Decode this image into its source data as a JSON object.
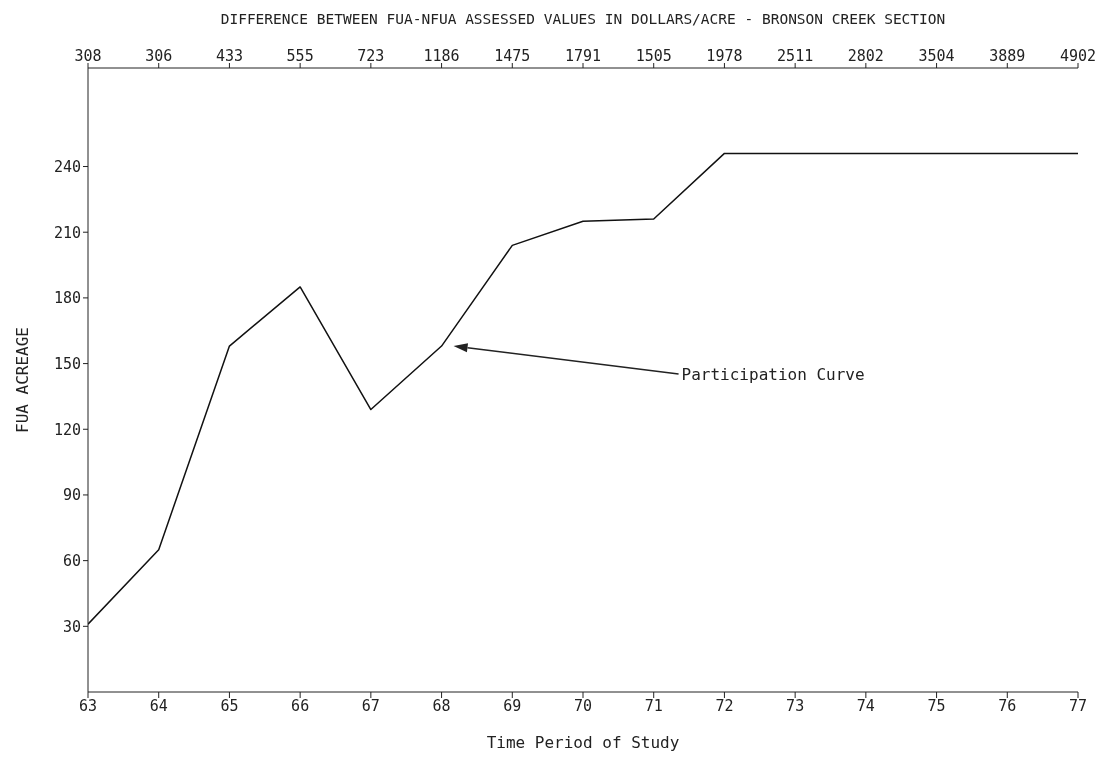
{
  "chart_data": {
    "type": "line",
    "xlabel": "Time Period of Study",
    "ylabel": "FUA  ACREAGE",
    "x2label": "DIFFERENCE BETWEEN FUA-NFUA ASSESSED VALUES IN DOLLARS/ACRE - BRONSON CREEK SECTION",
    "x": [
      63,
      64,
      65,
      66,
      67,
      68,
      69,
      70,
      71,
      72,
      73,
      74,
      75,
      76,
      77
    ],
    "series": [
      {
        "color": "#111111",
        "values": [
          31,
          65,
          158,
          185,
          129,
          158,
          204,
          215,
          216,
          246,
          246,
          246,
          246,
          246,
          246
        ]
      }
    ],
    "xlim": [
      63,
      77
    ],
    "xticks": [
      63,
      64,
      65,
      66,
      67,
      68,
      69,
      70,
      71,
      72,
      73,
      74,
      75,
      76,
      77
    ],
    "ylim": [
      0,
      285
    ],
    "yticks": [
      30,
      60,
      90,
      120,
      150,
      180,
      210,
      240
    ],
    "grid": false,
    "legend": false,
    "marker": "none",
    "line_style": "solid",
    "annotations": [
      "308",
      "306",
      "433",
      "555",
      "723",
      "1186",
      "1475",
      "1791",
      "1505",
      "1978",
      "2511",
      "2802",
      "3504",
      "3889",
      "4902",
      "Participation Curve"
    ]
  }
}
